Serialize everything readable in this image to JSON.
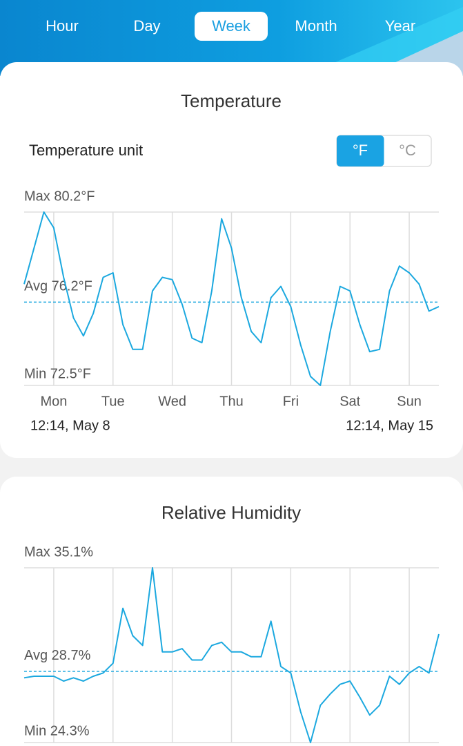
{
  "tabs": [
    "Hour",
    "Day",
    "Week",
    "Month",
    "Year"
  ],
  "selected_tab": "Week",
  "unit_label": "Temperature unit",
  "units": [
    "°F",
    "°C"
  ],
  "selected_unit": "°F",
  "chart_data": [
    {
      "type": "line",
      "title": "Temperature",
      "color": "#1ba8df",
      "max_label": "Max 80.2°F",
      "avg_label": "Avg 76.2°F",
      "min_label": "Min 72.5°F",
      "avg": 76.2,
      "ylim": [
        72.5,
        80.2
      ],
      "xtick_labels": [
        "Mon",
        "Tue",
        "Wed",
        "Thu",
        "Fri",
        "Sat",
        "Sun"
      ],
      "start_label": "12:14,  May 8",
      "end_label": "12:14,  May 15",
      "values": [
        77.0,
        78.6,
        80.2,
        79.5,
        77.3,
        75.5,
        74.7,
        75.7,
        77.3,
        77.5,
        75.2,
        74.1,
        74.1,
        76.7,
        77.3,
        77.2,
        76.1,
        74.6,
        74.4,
        76.7,
        79.9,
        78.6,
        76.4,
        74.9,
        74.4,
        76.4,
        76.9,
        76.0,
        74.3,
        72.9,
        72.5,
        74.9,
        76.9,
        76.7,
        75.2,
        74.0,
        74.1,
        76.7,
        77.8,
        77.5,
        77.0,
        75.8,
        76.0
      ]
    },
    {
      "type": "line",
      "title": "Relative Humidity",
      "color": "#1ba8df",
      "max_label": "Max 35.1%",
      "avg_label": "Avg 28.7%",
      "min_label": "Min 24.3%",
      "avg": 28.7,
      "ylim": [
        24.3,
        35.1
      ],
      "values": [
        28.3,
        28.4,
        28.4,
        28.4,
        28.1,
        28.3,
        28.1,
        28.4,
        28.6,
        29.2,
        32.6,
        30.9,
        30.3,
        35.1,
        29.9,
        29.9,
        30.1,
        29.4,
        29.4,
        30.3,
        30.5,
        29.9,
        29.9,
        29.6,
        29.6,
        31.8,
        29.0,
        28.6,
        26.2,
        24.3,
        26.6,
        27.3,
        27.9,
        28.1,
        27.1,
        26.0,
        26.6,
        28.4,
        27.9,
        28.6,
        29.0,
        28.6,
        31.0
      ]
    }
  ]
}
